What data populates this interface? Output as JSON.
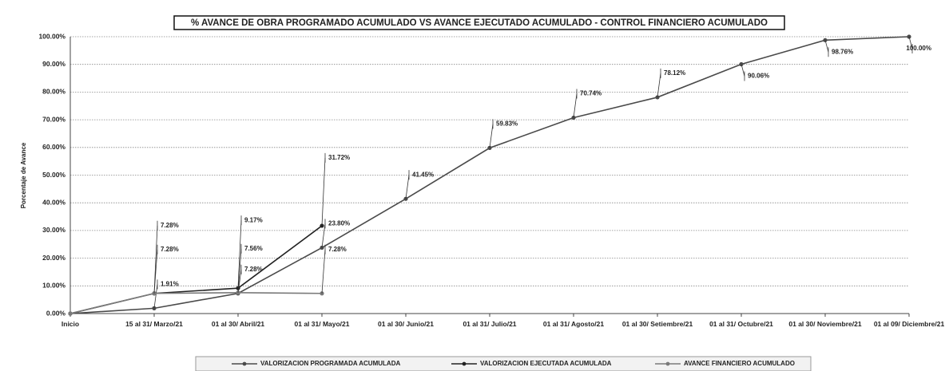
{
  "chart_data": {
    "type": "line",
    "title": "% AVANCE DE OBRA PROGRAMADO ACUMULADO VS AVANCE EJECUTADO ACUMULADO - CONTROL FINANCIERO ACUMULADO",
    "y_label": "Porcentaje de Avance",
    "categories": [
      "Inicio",
      "15 al 31/ Marzo/21",
      "01 al 30/ Abril/21",
      "01 al 31/ Mayo/21",
      "01 al 30/ Junio/21",
      "01 al 31/ Julio/21",
      "01 al 31/ Agosto/21",
      "01 al 30/ Setiembre/21",
      "01 al 31/ Octubre/21",
      "01 al 30/ Noviembre/21",
      "01 al 09/ Diciembre/21"
    ],
    "ylim": [
      0,
      100
    ],
    "yticks": [
      {
        "value": 0,
        "label": "0.00%"
      },
      {
        "value": 10,
        "label": "10.00%"
      },
      {
        "value": 20,
        "label": "20.00%"
      },
      {
        "value": 30,
        "label": "30.00%"
      },
      {
        "value": 40,
        "label": "40.00%"
      },
      {
        "value": 50,
        "label": "50.00%"
      },
      {
        "value": 60,
        "label": "60.00%"
      },
      {
        "value": 70,
        "label": "70.00%"
      },
      {
        "value": 80,
        "label": "80.00%"
      },
      {
        "value": 90,
        "label": "90.00%"
      },
      {
        "value": 100,
        "label": "100.00%"
      }
    ],
    "grid": true,
    "legend": "bottom",
    "series": [
      {
        "name": "VALORIZACION PROGRAMADA ACUMULADA",
        "color": "#4a4a4a",
        "values": [
          0,
          1.91,
          7.28,
          23.8,
          41.45,
          59.83,
          70.74,
          78.12,
          90.06,
          98.76,
          100.0
        ],
        "value_labels": [
          null,
          "1.91%",
          "7.28%",
          "23.80%",
          "41.45%",
          "59.83%",
          "70.74%",
          "78.12%",
          "90.06%",
          "98.76%",
          "100.00%"
        ]
      },
      {
        "name": "VALORIZACION EJECUTADA ACUMULADA",
        "color": "#222222",
        "values": [
          0,
          7.28,
          9.17,
          31.72,
          null,
          null,
          null,
          null,
          null,
          null,
          null
        ],
        "value_labels": [
          null,
          "7.28%",
          "9.17%",
          "31.72%",
          null,
          null,
          null,
          null,
          null,
          null,
          null
        ]
      },
      {
        "name": "AVANCE FINANCIERO ACUMULADO",
        "color": "#7a7a7a",
        "values": [
          0,
          7.28,
          7.56,
          7.28,
          null,
          null,
          null,
          null,
          null,
          null,
          null
        ],
        "value_labels": [
          null,
          "7.28%",
          "7.56%",
          "7.28%",
          null,
          null,
          null,
          null,
          null,
          null,
          null
        ]
      }
    ]
  }
}
